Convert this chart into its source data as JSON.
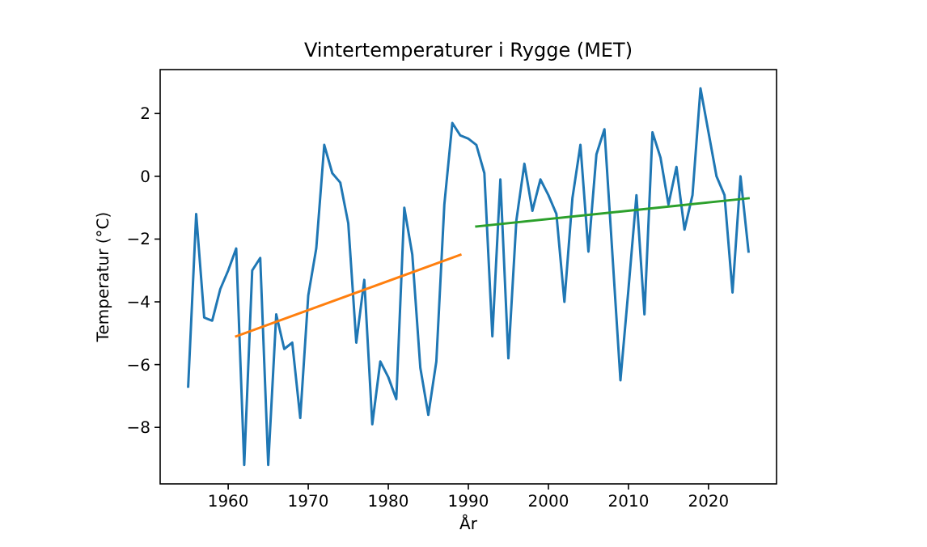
{
  "chart_data": {
    "type": "line",
    "title": "Vintertemperaturer i Rygge (MET)",
    "xlabel": "År",
    "ylabel": "Temperatur (°C)",
    "xlim": [
      1951.5,
      2028.5
    ],
    "ylim": [
      -9.8,
      3.4
    ],
    "xticks": [
      1960,
      1970,
      1980,
      1990,
      2000,
      2010,
      2020
    ],
    "yticks": [
      {
        "value": -8,
        "label": "−8"
      },
      {
        "value": -6,
        "label": "−6"
      },
      {
        "value": -4,
        "label": "−4"
      },
      {
        "value": -2,
        "label": "−2"
      },
      0,
      2
    ],
    "grid": false,
    "series": [
      {
        "color": "#1f77b4",
        "x": [
          1955,
          1956,
          1957,
          1958,
          1959,
          1960,
          1961,
          1962,
          1963,
          1964,
          1965,
          1966,
          1967,
          1968,
          1969,
          1970,
          1971,
          1972,
          1973,
          1974,
          1975,
          1976,
          1977,
          1978,
          1979,
          1980,
          1981,
          1982,
          1983,
          1984,
          1985,
          1986,
          1987,
          1988,
          1989,
          1990,
          1991,
          1992,
          1993,
          1994,
          1995,
          1996,
          1997,
          1998,
          1999,
          2000,
          2001,
          2002,
          2003,
          2004,
          2005,
          2006,
          2007,
          2008,
          2009,
          2010,
          2011,
          2012,
          2013,
          2014,
          2015,
          2016,
          2017,
          2018,
          2019,
          2020,
          2021,
          2022,
          2023,
          2024,
          2025
        ],
        "values": [
          -6.7,
          -1.2,
          -4.5,
          -4.6,
          -3.6,
          -3.0,
          -2.3,
          -9.2,
          -3.0,
          -2.6,
          -9.2,
          -4.4,
          -5.5,
          -5.3,
          -7.7,
          -3.8,
          -2.3,
          1.0,
          0.1,
          -0.2,
          -1.5,
          -5.3,
          -3.3,
          -7.9,
          -5.9,
          -6.4,
          -7.1,
          -1.0,
          -2.5,
          -6.1,
          -7.6,
          -5.9,
          -0.9,
          1.7,
          1.3,
          1.2,
          1.0,
          0.1,
          -5.1,
          -0.1,
          -5.8,
          -1.4,
          0.4,
          -1.1,
          -0.1,
          -0.6,
          -1.2,
          -4.0,
          -0.7,
          1.0,
          -2.4,
          0.7,
          1.5,
          -2.5,
          -6.5,
          -3.6,
          -0.6,
          -4.4,
          1.4,
          0.6,
          -0.9,
          0.3,
          -1.7,
          -0.6,
          2.8,
          1.4,
          0.0,
          -0.6,
          -3.7,
          0.0,
          -2.4
        ]
      },
      {
        "color": "#ff7f0e",
        "x": [
          1961,
          1989
        ],
        "values": [
          -5.1,
          -2.5
        ]
      },
      {
        "color": "#2ca02c",
        "x": [
          1991,
          2025
        ],
        "values": [
          -1.6,
          -0.7
        ]
      }
    ]
  }
}
